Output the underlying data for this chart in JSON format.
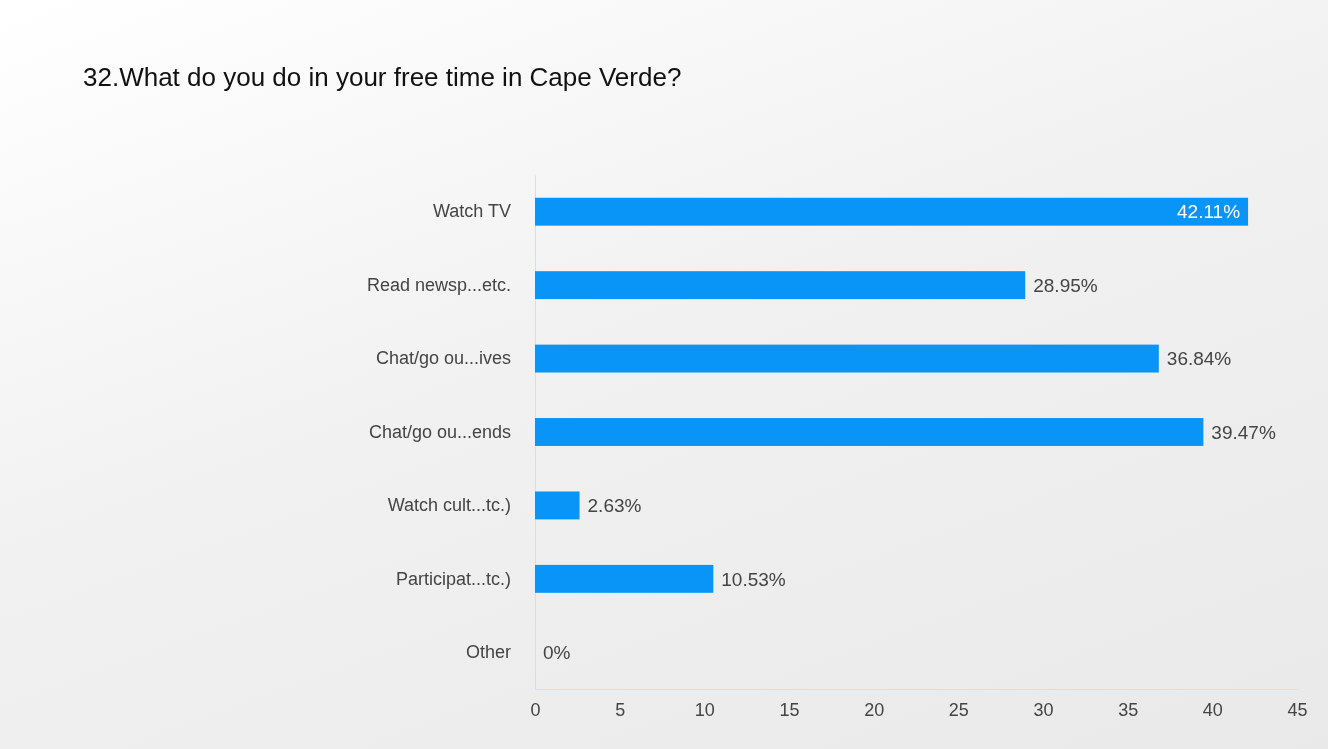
{
  "chart_data": {
    "type": "bar",
    "orientation": "horizontal",
    "title": "32.What do you do in your free time in Cape Verde?",
    "categories": [
      "Watch TV",
      "Read newsp...etc.",
      "Chat/go ou...ives",
      "Chat/go ou...ends",
      "Watch cult...tc.)",
      "Participat...tc.)",
      "Other"
    ],
    "values": [
      42.11,
      28.95,
      36.84,
      39.47,
      2.63,
      10.53,
      0
    ],
    "value_labels": [
      "42.11%",
      "28.95%",
      "36.84%",
      "39.47%",
      "2.63%",
      "10.53%",
      "0%"
    ],
    "color": "#0994f7",
    "xlim": [
      0,
      45
    ],
    "xticks": [
      0,
      5,
      10,
      15,
      20,
      25,
      30,
      35,
      40,
      45
    ],
    "grid": false
  }
}
